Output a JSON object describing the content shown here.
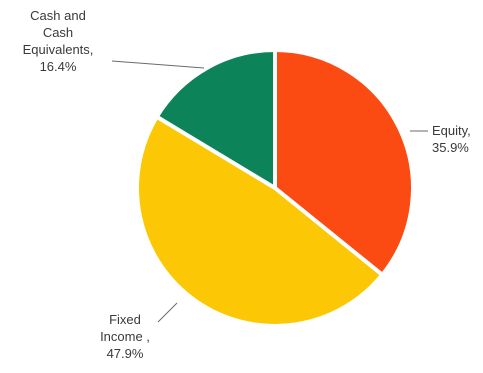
{
  "chart_data": {
    "type": "pie",
    "start_angle_deg": 0,
    "direction": "clockwise",
    "slices": [
      {
        "label_lines": [
          "Equity,",
          "35.9%"
        ],
        "value": 35.9,
        "color": "#fb4b12"
      },
      {
        "label_lines": [
          "Fixed",
          "Income ,",
          "47.9%"
        ],
        "value": 47.9,
        "color": "#fcc806"
      },
      {
        "label_lines": [
          "Cash and",
          "Cash",
          "Equivalents,",
          "16.4%"
        ],
        "value": 16.4,
        "color": "#0d8359"
      }
    ]
  }
}
